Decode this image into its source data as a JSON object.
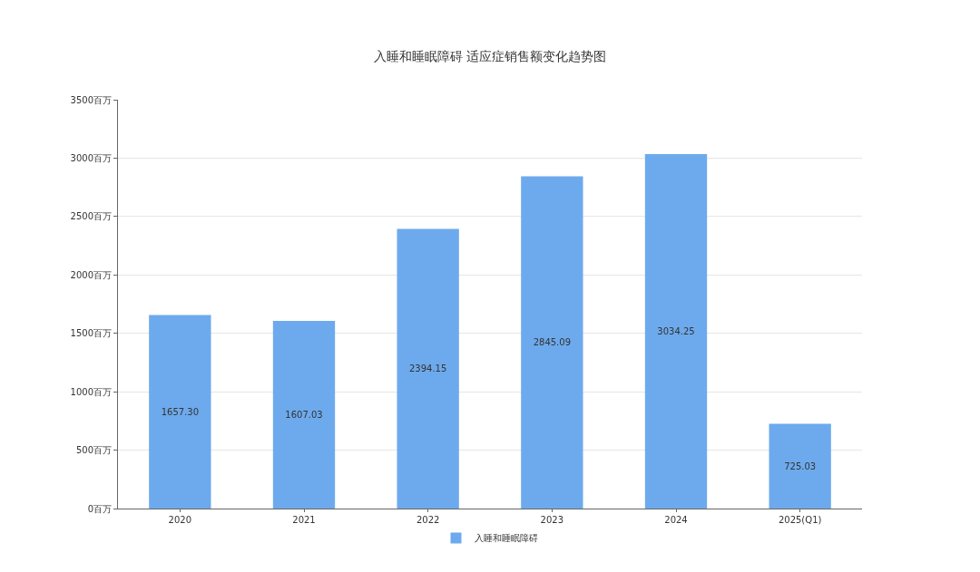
{
  "chart_data": {
    "type": "bar",
    "title": "入睡和睡眠障碍 适应症销售额变化趋势图",
    "categories": [
      "2020",
      "2021",
      "2022",
      "2023",
      "2024",
      "2025(Q1)"
    ],
    "series": [
      {
        "name": "入睡和睡眠障碍",
        "color": "#6daaed",
        "values": [
          1657.3,
          1607.03,
          2394.15,
          2845.09,
          3034.25,
          725.03
        ],
        "value_labels": [
          "1657.30",
          "1607.03",
          "2394.15",
          "2845.09",
          "3034.25",
          "725.03"
        ]
      }
    ],
    "ylim": [
      0,
      3500
    ],
    "yticks": [
      {
        "value": 0,
        "label": "0百万"
      },
      {
        "value": 500,
        "label": "500百万"
      },
      {
        "value": 1000,
        "label": "1000百万"
      },
      {
        "value": 1500,
        "label": "1500百万"
      },
      {
        "value": 2000,
        "label": "2000百万"
      },
      {
        "value": 2500,
        "label": "2500百万"
      },
      {
        "value": 3000,
        "label": "3000百万"
      },
      {
        "value": 3500,
        "label": "3500百万"
      }
    ],
    "grid": "y",
    "legend": "bottom"
  }
}
